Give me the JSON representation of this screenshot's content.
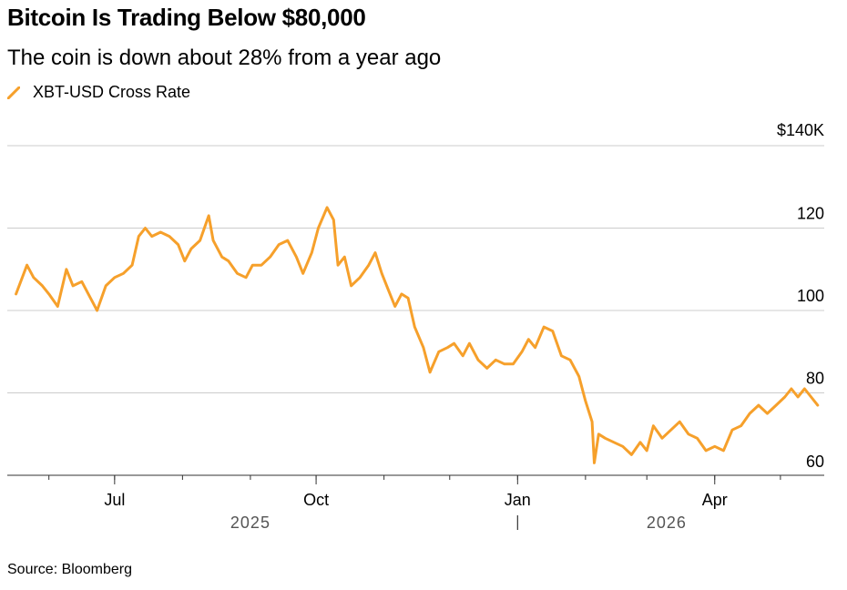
{
  "header": {
    "title": "Bitcoin Is Trading Below $80,000",
    "subtitle": "The coin is down about 28% from a year ago"
  },
  "footer": {
    "source": "Source: Bloomberg"
  },
  "colors": {
    "series": "#f6a02b",
    "grid": "#cccccc",
    "axis": "#333333"
  },
  "chart_data": {
    "type": "line",
    "legend": [
      "XBT-USD Cross Rate"
    ],
    "y_ticks": [
      {
        "value": 140,
        "label": "$140K"
      },
      {
        "value": 120,
        "label": "120"
      },
      {
        "value": 100,
        "label": "100"
      },
      {
        "value": 80,
        "label": "80"
      },
      {
        "value": 60,
        "label": "60"
      }
    ],
    "ylim": [
      58,
      140
    ],
    "y_unit": "thousand USD",
    "x_range": [
      "2025-05-13",
      "2026-05-21"
    ],
    "x_month_labels": [
      {
        "date": "2025-07-01",
        "label": "Jul"
      },
      {
        "date": "2025-10-01",
        "label": "Oct"
      },
      {
        "date": "2026-01-01",
        "label": "Jan"
      },
      {
        "date": "2026-04-01",
        "label": "Apr"
      }
    ],
    "x_minor_ticks": [
      "2025-06-01",
      "2025-07-01",
      "2025-08-01",
      "2025-09-01",
      "2025-10-01",
      "2025-11-01",
      "2025-12-01",
      "2026-01-01",
      "2026-02-01",
      "2026-03-01",
      "2026-04-01",
      "2026-05-01"
    ],
    "year_labels": [
      {
        "label": "2025",
        "center": "2025-09-01"
      },
      {
        "label": "2026",
        "center": "2026-03-10"
      }
    ],
    "year_divider": "2026-01-01",
    "grid": true,
    "series": [
      {
        "name": "XBT-USD Cross Rate",
        "points": [
          [
            "2025-05-17",
            104
          ],
          [
            "2025-05-22",
            111
          ],
          [
            "2025-05-25",
            108
          ],
          [
            "2025-05-29",
            106
          ],
          [
            "2025-06-01",
            104
          ],
          [
            "2025-06-05",
            101
          ],
          [
            "2025-06-09",
            110
          ],
          [
            "2025-06-12",
            106
          ],
          [
            "2025-06-16",
            107
          ],
          [
            "2025-06-20",
            103
          ],
          [
            "2025-06-23",
            100
          ],
          [
            "2025-06-27",
            106
          ],
          [
            "2025-07-01",
            108
          ],
          [
            "2025-07-05",
            109
          ],
          [
            "2025-07-09",
            111
          ],
          [
            "2025-07-12",
            118
          ],
          [
            "2025-07-15",
            120
          ],
          [
            "2025-07-18",
            118
          ],
          [
            "2025-07-22",
            119
          ],
          [
            "2025-07-26",
            118
          ],
          [
            "2025-07-30",
            116
          ],
          [
            "2025-08-02",
            112
          ],
          [
            "2025-08-05",
            115
          ],
          [
            "2025-08-09",
            117
          ],
          [
            "2025-08-13",
            123
          ],
          [
            "2025-08-15",
            117
          ],
          [
            "2025-08-19",
            113
          ],
          [
            "2025-08-22",
            112
          ],
          [
            "2025-08-26",
            109
          ],
          [
            "2025-08-30",
            108
          ],
          [
            "2025-09-02",
            111
          ],
          [
            "2025-09-06",
            111
          ],
          [
            "2025-09-10",
            113
          ],
          [
            "2025-09-14",
            116
          ],
          [
            "2025-09-18",
            117
          ],
          [
            "2025-09-22",
            113
          ],
          [
            "2025-09-25",
            109
          ],
          [
            "2025-09-29",
            114
          ],
          [
            "2025-10-02",
            120
          ],
          [
            "2025-10-06",
            125
          ],
          [
            "2025-10-09",
            122
          ],
          [
            "2025-10-11",
            111
          ],
          [
            "2025-10-14",
            113
          ],
          [
            "2025-10-17",
            106
          ],
          [
            "2025-10-21",
            108
          ],
          [
            "2025-10-25",
            111
          ],
          [
            "2025-10-28",
            114
          ],
          [
            "2025-10-31",
            109
          ],
          [
            "2025-11-03",
            105
          ],
          [
            "2025-11-06",
            101
          ],
          [
            "2025-11-09",
            104
          ],
          [
            "2025-11-12",
            103
          ],
          [
            "2025-11-15",
            96
          ],
          [
            "2025-11-19",
            91
          ],
          [
            "2025-11-22",
            85
          ],
          [
            "2025-11-26",
            90
          ],
          [
            "2025-11-30",
            91
          ],
          [
            "2025-12-03",
            92
          ],
          [
            "2025-12-07",
            89
          ],
          [
            "2025-12-10",
            92
          ],
          [
            "2025-12-14",
            88
          ],
          [
            "2025-12-18",
            86
          ],
          [
            "2025-12-22",
            88
          ],
          [
            "2025-12-26",
            87
          ],
          [
            "2025-12-30",
            87
          ],
          [
            "2026-01-03",
            90
          ],
          [
            "2026-01-06",
            93
          ],
          [
            "2026-01-09",
            91
          ],
          [
            "2026-01-13",
            96
          ],
          [
            "2026-01-17",
            95
          ],
          [
            "2026-01-21",
            89
          ],
          [
            "2026-01-25",
            88
          ],
          [
            "2026-01-29",
            84
          ],
          [
            "2026-02-01",
            78
          ],
          [
            "2026-02-04",
            73
          ],
          [
            "2026-02-05",
            63
          ],
          [
            "2026-02-07",
            70
          ],
          [
            "2026-02-10",
            69
          ],
          [
            "2026-02-14",
            68
          ],
          [
            "2026-02-18",
            67
          ],
          [
            "2026-02-22",
            65
          ],
          [
            "2026-02-26",
            68
          ],
          [
            "2026-03-01",
            66
          ],
          [
            "2026-03-04",
            72
          ],
          [
            "2026-03-08",
            69
          ],
          [
            "2026-03-12",
            71
          ],
          [
            "2026-03-16",
            73
          ],
          [
            "2026-03-20",
            70
          ],
          [
            "2026-03-24",
            69
          ],
          [
            "2026-03-28",
            66
          ],
          [
            "2026-04-01",
            67
          ],
          [
            "2026-04-05",
            66
          ],
          [
            "2026-04-09",
            71
          ],
          [
            "2026-04-13",
            72
          ],
          [
            "2026-04-17",
            75
          ],
          [
            "2026-04-21",
            77
          ],
          [
            "2026-04-25",
            75
          ],
          [
            "2026-04-29",
            77
          ],
          [
            "2026-05-03",
            79
          ],
          [
            "2026-05-06",
            81
          ],
          [
            "2026-05-09",
            79
          ],
          [
            "2026-05-12",
            81
          ],
          [
            "2026-05-15",
            79
          ],
          [
            "2026-05-18",
            77
          ]
        ]
      }
    ]
  }
}
